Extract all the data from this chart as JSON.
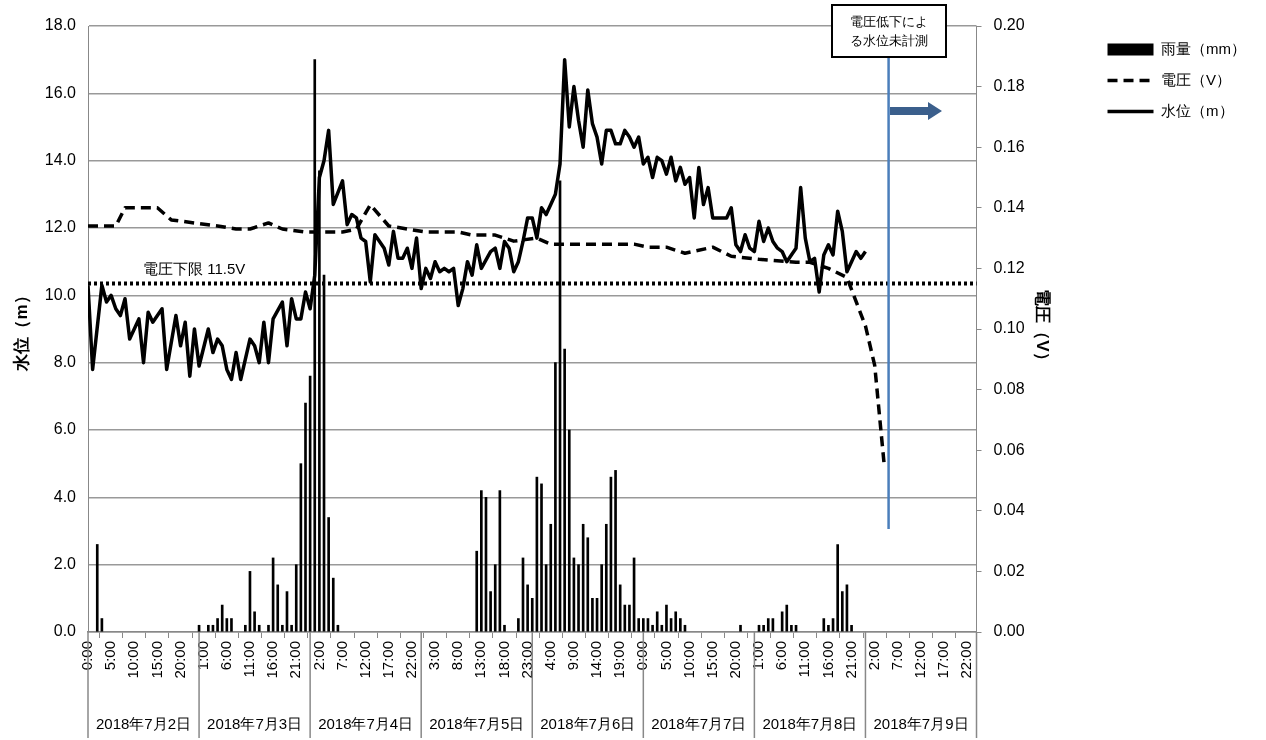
{
  "chart_data": {
    "type": "line",
    "ylabel": "水位（m）",
    "y2label": "電圧（V）",
    "xlim": [
      "2018-07-02T00:00",
      "2018-07-10T00:00"
    ],
    "xticks": [
      {
        "value": "2018-07-02T00:00",
        "label": "0:00"
      },
      {
        "value": "2018-07-02T05:00",
        "label": "5:00"
      },
      {
        "value": "2018-07-02T10:00",
        "label": "10:00"
      },
      {
        "value": "2018-07-02T15:00",
        "label": "15:00"
      },
      {
        "value": "2018-07-02T20:00",
        "label": "20:00"
      },
      {
        "value": "2018-07-03T01:00",
        "label": "1:00"
      },
      {
        "value": "2018-07-03T06:00",
        "label": "6:00"
      },
      {
        "value": "2018-07-03T11:00",
        "label": "11:00"
      },
      {
        "value": "2018-07-03T16:00",
        "label": "16:00"
      },
      {
        "value": "2018-07-03T21:00",
        "label": "21:00"
      },
      {
        "value": "2018-07-04T02:00",
        "label": "2:00"
      },
      {
        "value": "2018-07-04T07:00",
        "label": "7:00"
      },
      {
        "value": "2018-07-04T12:00",
        "label": "12:00"
      },
      {
        "value": "2018-07-04T17:00",
        "label": "17:00"
      },
      {
        "value": "2018-07-04T22:00",
        "label": "22:00"
      },
      {
        "value": "2018-07-05T03:00",
        "label": "3:00"
      },
      {
        "value": "2018-07-05T08:00",
        "label": "8:00"
      },
      {
        "value": "2018-07-05T13:00",
        "label": "13:00"
      },
      {
        "value": "2018-07-05T18:00",
        "label": "18:00"
      },
      {
        "value": "2018-07-05T23:00",
        "label": "23:00"
      },
      {
        "value": "2018-07-06T04:00",
        "label": "4:00"
      },
      {
        "value": "2018-07-06T09:00",
        "label": "9:00"
      },
      {
        "value": "2018-07-06T14:00",
        "label": "14:00"
      },
      {
        "value": "2018-07-06T19:00",
        "label": "19:00"
      },
      {
        "value": "2018-07-07T00:00",
        "label": "0:00"
      },
      {
        "value": "2018-07-07T05:00",
        "label": "5:00"
      },
      {
        "value": "2018-07-07T10:00",
        "label": "10:00"
      },
      {
        "value": "2018-07-07T15:00",
        "label": "15:00"
      },
      {
        "value": "2018-07-07T20:00",
        "label": "20:00"
      },
      {
        "value": "2018-07-08T01:00",
        "label": "1:00"
      },
      {
        "value": "2018-07-08T06:00",
        "label": "6:00"
      },
      {
        "value": "2018-07-08T11:00",
        "label": "11:00"
      },
      {
        "value": "2018-07-08T16:00",
        "label": "16:00"
      },
      {
        "value": "2018-07-08T21:00",
        "label": "21:00"
      },
      {
        "value": "2018-07-09T02:00",
        "label": "2:00"
      },
      {
        "value": "2018-07-09T07:00",
        "label": "7:00"
      },
      {
        "value": "2018-07-09T12:00",
        "label": "12:00"
      },
      {
        "value": "2018-07-09T17:00",
        "label": "17:00"
      },
      {
        "value": "2018-07-09T22:00",
        "label": "22:00"
      }
    ],
    "x2lim": [
      "2018-07-02T00:00",
      "2018-07-10T00:00"
    ],
    "x2ticks": [
      {
        "value": "2018-07-02T12:00",
        "label": "2018年7月2日"
      },
      {
        "value": "2018-07-03T12:00",
        "label": "2018年7月3日"
      },
      {
        "value": "2018-07-04T12:00",
        "label": "2018年7月4日"
      },
      {
        "value": "2018-07-05T12:00",
        "label": "2018年7月5日"
      },
      {
        "value": "2018-07-06T12:00",
        "label": "2018年7月6日"
      },
      {
        "value": "2018-07-07T12:00",
        "label": "2018年7月7日"
      },
      {
        "value": "2018-07-08T12:00",
        "label": "2018年7月8日"
      },
      {
        "value": "2018-07-09T12:00",
        "label": "2018年7月9日"
      }
    ],
    "ylim": [
      0,
      18
    ],
    "yticks": [
      {
        "value": 0,
        "label": "0.0"
      },
      {
        "value": 2,
        "label": "2.0"
      },
      {
        "value": 4,
        "label": "4.0"
      },
      {
        "value": 6,
        "label": "6.0"
      },
      {
        "value": 8,
        "label": "8.0"
      },
      {
        "value": 10,
        "label": "10.0"
      },
      {
        "value": 12,
        "label": "12.0"
      },
      {
        "value": 14,
        "label": "14.0"
      },
      {
        "value": 16,
        "label": "16.0"
      },
      {
        "value": 18,
        "label": "18.0"
      }
    ],
    "y2lim": [
      0,
      0.2
    ],
    "y2ticks": [
      {
        "value": 0,
        "label": "0.00"
      },
      {
        "value": 0.02,
        "label": "0.02"
      },
      {
        "value": 0.04,
        "label": "0.04"
      },
      {
        "value": 0.06,
        "label": "0.06"
      },
      {
        "value": 0.08,
        "label": "0.08"
      },
      {
        "value": 0.1,
        "label": "0.10"
      },
      {
        "value": 0.12,
        "label": "0.12"
      },
      {
        "value": 0.14,
        "label": "0.14"
      },
      {
        "value": 0.16,
        "label": "0.16"
      },
      {
        "value": 0.18,
        "label": "0.18"
      },
      {
        "value": 0.2,
        "label": "0.20"
      }
    ],
    "grid": "y",
    "legend": "right",
    "marker": "none",
    "series": [
      {
        "type": "bar",
        "name": "雨量（mm）",
        "color": "#000000",
        "x": [
          "2018-07-02T02:00",
          "2018-07-02T03:00",
          "2018-07-03T00:00",
          "2018-07-03T02:00",
          "2018-07-03T03:00",
          "2018-07-03T04:00",
          "2018-07-03T05:00",
          "2018-07-03T06:00",
          "2018-07-03T07:00",
          "2018-07-03T10:00",
          "2018-07-03T11:00",
          "2018-07-03T12:00",
          "2018-07-03T13:00",
          "2018-07-03T15:00",
          "2018-07-03T16:00",
          "2018-07-03T17:00",
          "2018-07-03T18:00",
          "2018-07-03T19:00",
          "2018-07-03T20:00",
          "2018-07-03T21:00",
          "2018-07-03T22:00",
          "2018-07-03T23:00",
          "2018-07-04T00:00",
          "2018-07-04T01:00",
          "2018-07-04T02:00",
          "2018-07-04T03:00",
          "2018-07-04T04:00",
          "2018-07-04T05:00",
          "2018-07-04T06:00",
          "2018-07-05T12:00",
          "2018-07-05T13:00",
          "2018-07-05T14:00",
          "2018-07-05T15:00",
          "2018-07-05T16:00",
          "2018-07-05T17:00",
          "2018-07-05T18:00",
          "2018-07-05T21:00",
          "2018-07-05T22:00",
          "2018-07-05T23:00",
          "2018-07-06T00:00",
          "2018-07-06T01:00",
          "2018-07-06T02:00",
          "2018-07-06T03:00",
          "2018-07-06T04:00",
          "2018-07-06T05:00",
          "2018-07-06T06:00",
          "2018-07-06T07:00",
          "2018-07-06T08:00",
          "2018-07-06T09:00",
          "2018-07-06T10:00",
          "2018-07-06T11:00",
          "2018-07-06T12:00",
          "2018-07-06T13:00",
          "2018-07-06T14:00",
          "2018-07-06T15:00",
          "2018-07-06T16:00",
          "2018-07-06T17:00",
          "2018-07-06T18:00",
          "2018-07-06T19:00",
          "2018-07-06T20:00",
          "2018-07-06T21:00",
          "2018-07-06T22:00",
          "2018-07-06T23:00",
          "2018-07-07T00:00",
          "2018-07-07T01:00",
          "2018-07-07T02:00",
          "2018-07-07T03:00",
          "2018-07-07T04:00",
          "2018-07-07T05:00",
          "2018-07-07T06:00",
          "2018-07-07T07:00",
          "2018-07-07T08:00",
          "2018-07-07T09:00",
          "2018-07-07T21:00",
          "2018-07-08T01:00",
          "2018-07-08T02:00",
          "2018-07-08T03:00",
          "2018-07-08T04:00",
          "2018-07-08T06:00",
          "2018-07-08T07:00",
          "2018-07-08T08:00",
          "2018-07-08T09:00",
          "2018-07-08T15:00",
          "2018-07-08T16:00",
          "2018-07-08T17:00",
          "2018-07-08T18:00",
          "2018-07-08T19:00",
          "2018-07-08T20:00",
          "2018-07-08T21:00"
        ],
        "values": [
          2.6,
          0.4,
          0.2,
          0.2,
          0.2,
          0.4,
          0.8,
          0.4,
          0.4,
          0.2,
          1.8,
          0.6,
          0.2,
          0.2,
          2.2,
          1.4,
          0.2,
          1.2,
          0.2,
          2.0,
          5.0,
          6.8,
          7.6,
          17.0,
          13.7,
          10.6,
          3.4,
          1.6,
          0.2,
          2.4,
          4.2,
          4.0,
          1.2,
          2.0,
          4.2,
          0.2,
          0.4,
          2.2,
          1.4,
          1.0,
          4.6,
          4.4,
          2.0,
          3.2,
          8.0,
          13.4,
          8.4,
          6.0,
          2.2,
          2.0,
          3.2,
          2.8,
          1.0,
          1.0,
          2.0,
          3.2,
          4.6,
          4.8,
          1.4,
          0.8,
          0.8,
          2.2,
          0.4,
          0.4,
          0.4,
          0.2,
          0.6,
          0.2,
          0.8,
          0.4,
          0.6,
          0.4,
          0.2,
          0.2,
          0.2,
          0.2,
          0.4,
          0.4,
          0.6,
          0.8,
          0.2,
          0.2,
          0.4,
          0.2,
          0.4,
          2.6,
          1.2,
          1.4,
          0.2
        ]
      },
      {
        "name": "電圧（V）",
        "color": "#000000",
        "axis": "y2",
        "line_style": "dashed",
        "x": [
          "2018-07-02T00:00",
          "2018-07-02T06:00",
          "2018-07-02T08:00",
          "2018-07-02T11:00",
          "2018-07-02T15:00",
          "2018-07-02T18:00",
          "2018-07-02T23:00",
          "2018-07-03T04:00",
          "2018-07-03T08:00",
          "2018-07-03T11:00",
          "2018-07-03T15:00",
          "2018-07-03T18:00",
          "2018-07-03T23:00",
          "2018-07-04T02:00",
          "2018-07-04T07:00",
          "2018-07-04T10:00",
          "2018-07-04T13:00",
          "2018-07-04T17:00",
          "2018-07-04T21:00",
          "2018-07-05T01:00",
          "2018-07-05T08:00",
          "2018-07-05T11:00",
          "2018-07-05T16:00",
          "2018-07-05T20:00",
          "2018-07-06T01:00",
          "2018-07-06T04:00",
          "2018-07-06T13:00",
          "2018-07-06T22:00",
          "2018-07-07T01:00",
          "2018-07-07T05:00",
          "2018-07-07T09:00",
          "2018-07-07T15:00",
          "2018-07-07T19:00",
          "2018-07-08T01:00",
          "2018-07-08T09:00",
          "2018-07-08T12:00",
          "2018-07-08T16:00",
          "2018-07-08T20:00",
          "2018-07-08T21:00",
          "2018-07-09T00:00",
          "2018-07-09T02:00",
          "2018-07-09T03:00",
          "2018-07-09T04:00"
        ],
        "values": [
          0.134,
          0.134,
          0.14,
          0.14,
          0.14,
          0.136,
          0.135,
          0.134,
          0.133,
          0.133,
          0.135,
          0.133,
          0.132,
          0.132,
          0.132,
          0.133,
          0.141,
          0.134,
          0.133,
          0.132,
          0.132,
          0.131,
          0.131,
          0.129,
          0.13,
          0.128,
          0.128,
          0.128,
          0.127,
          0.127,
          0.125,
          0.127,
          0.124,
          0.123,
          0.122,
          0.122,
          0.12,
          0.117,
          0.113,
          0.101,
          0.088,
          0.072,
          0.056
        ]
      },
      {
        "name": "水位（m）",
        "color": "#000000",
        "line_style": "solid",
        "x": [
          "2018-07-02T00:00",
          "2018-07-02T01:00",
          "2018-07-02T03:00",
          "2018-07-02T04:00",
          "2018-07-02T05:00",
          "2018-07-02T06:00",
          "2018-07-02T07:00",
          "2018-07-02T08:00",
          "2018-07-02T09:00",
          "2018-07-02T11:00",
          "2018-07-02T12:00",
          "2018-07-02T13:00",
          "2018-07-02T14:00",
          "2018-07-02T16:00",
          "2018-07-02T17:00",
          "2018-07-02T19:00",
          "2018-07-02T20:00",
          "2018-07-02T21:00",
          "2018-07-02T22:00",
          "2018-07-02T23:00",
          "2018-07-03T00:00",
          "2018-07-03T02:00",
          "2018-07-03T03:00",
          "2018-07-03T04:00",
          "2018-07-03T05:00",
          "2018-07-03T06:00",
          "2018-07-03T07:00",
          "2018-07-03T08:00",
          "2018-07-03T09:00",
          "2018-07-03T11:00",
          "2018-07-03T12:00",
          "2018-07-03T13:00",
          "2018-07-03T14:00",
          "2018-07-03T15:00",
          "2018-07-03T16:00",
          "2018-07-03T18:00",
          "2018-07-03T19:00",
          "2018-07-03T20:00",
          "2018-07-03T21:00",
          "2018-07-03T22:00",
          "2018-07-03T23:00",
          "2018-07-04T00:00",
          "2018-07-04T01:00",
          "2018-07-04T02:00",
          "2018-07-04T03:00",
          "2018-07-04T04:00",
          "2018-07-04T05:00",
          "2018-07-04T07:00",
          "2018-07-04T08:00",
          "2018-07-04T09:00",
          "2018-07-04T10:00",
          "2018-07-04T11:00",
          "2018-07-04T12:00",
          "2018-07-04T13:00",
          "2018-07-04T14:00",
          "2018-07-04T16:00",
          "2018-07-04T17:00",
          "2018-07-04T18:00",
          "2018-07-04T19:00",
          "2018-07-04T20:00",
          "2018-07-04T21:00",
          "2018-07-04T22:00",
          "2018-07-04T23:00",
          "2018-07-05T00:00",
          "2018-07-05T01:00",
          "2018-07-05T02:00",
          "2018-07-05T03:00",
          "2018-07-05T04:00",
          "2018-07-05T05:00",
          "2018-07-05T06:00",
          "2018-07-05T07:00",
          "2018-07-05T08:00",
          "2018-07-05T09:00",
          "2018-07-05T10:00",
          "2018-07-05T11:00",
          "2018-07-05T12:00",
          "2018-07-05T13:00",
          "2018-07-05T15:00",
          "2018-07-05T16:00",
          "2018-07-05T17:00",
          "2018-07-05T18:00",
          "2018-07-05T19:00",
          "2018-07-05T20:00",
          "2018-07-05T21:00",
          "2018-07-05T22:00",
          "2018-07-05T23:00",
          "2018-07-06T00:00",
          "2018-07-06T01:00",
          "2018-07-06T02:00",
          "2018-07-06T03:00",
          "2018-07-06T04:00",
          "2018-07-06T05:00",
          "2018-07-06T06:00",
          "2018-07-06T07:00",
          "2018-07-06T08:00",
          "2018-07-06T09:00",
          "2018-07-06T10:00",
          "2018-07-06T11:00",
          "2018-07-06T12:00",
          "2018-07-06T13:00",
          "2018-07-06T14:00",
          "2018-07-06T15:00",
          "2018-07-06T16:00",
          "2018-07-06T17:00",
          "2018-07-06T18:00",
          "2018-07-06T19:00",
          "2018-07-06T20:00",
          "2018-07-06T21:00",
          "2018-07-06T22:00",
          "2018-07-06T23:00",
          "2018-07-07T00:00",
          "2018-07-07T01:00",
          "2018-07-07T02:00",
          "2018-07-07T03:00",
          "2018-07-07T04:00",
          "2018-07-07T05:00",
          "2018-07-07T06:00",
          "2018-07-07T07:00",
          "2018-07-07T08:00",
          "2018-07-07T09:00",
          "2018-07-07T10:00",
          "2018-07-07T11:00",
          "2018-07-07T12:00",
          "2018-07-07T13:00",
          "2018-07-07T14:00",
          "2018-07-07T15:00",
          "2018-07-07T18:00",
          "2018-07-07T19:00",
          "2018-07-07T20:00",
          "2018-07-07T21:00",
          "2018-07-07T22:00",
          "2018-07-07T23:00",
          "2018-07-08T00:00",
          "2018-07-08T01:00",
          "2018-07-08T02:00",
          "2018-07-08T03:00",
          "2018-07-08T04:00",
          "2018-07-08T05:00",
          "2018-07-08T06:00",
          "2018-07-08T07:00",
          "2018-07-08T09:00",
          "2018-07-08T10:00",
          "2018-07-08T11:00",
          "2018-07-08T12:00",
          "2018-07-08T13:00",
          "2018-07-08T14:00",
          "2018-07-08T15:00",
          "2018-07-08T16:00",
          "2018-07-08T17:00",
          "2018-07-08T18:00",
          "2018-07-08T19:00",
          "2018-07-08T20:00",
          "2018-07-08T21:00",
          "2018-07-08T22:00",
          "2018-07-08T23:00",
          "2018-07-09T00:00"
        ],
        "values": [
          10.3,
          7.8,
          10.3,
          9.8,
          10.0,
          9.6,
          9.4,
          9.9,
          8.7,
          9.3,
          8.0,
          9.5,
          9.2,
          9.6,
          7.8,
          9.4,
          8.5,
          9.2,
          7.6,
          9.0,
          7.9,
          9.0,
          8.3,
          8.7,
          8.5,
          7.8,
          7.5,
          8.3,
          7.5,
          8.7,
          8.5,
          8.0,
          9.2,
          8.0,
          9.3,
          9.8,
          8.5,
          9.9,
          9.3,
          9.3,
          10.1,
          9.6,
          10.6,
          13.5,
          14.0,
          14.9,
          12.7,
          13.4,
          12.1,
          12.4,
          12.3,
          11.7,
          11.6,
          10.4,
          11.8,
          11.4,
          10.9,
          11.9,
          11.1,
          11.1,
          11.4,
          10.8,
          11.7,
          10.2,
          10.8,
          10.5,
          11.0,
          10.7,
          10.8,
          10.7,
          10.8,
          9.7,
          10.2,
          11.0,
          10.6,
          11.5,
          10.8,
          11.3,
          11.4,
          10.8,
          11.6,
          11.4,
          10.7,
          11.0,
          11.6,
          12.3,
          12.3,
          11.7,
          12.6,
          12.4,
          12.7,
          13.0,
          13.9,
          17.0,
          15.0,
          16.2,
          15.2,
          14.4,
          16.1,
          15.1,
          14.7,
          13.9,
          14.9,
          14.9,
          14.5,
          14.5,
          14.9,
          14.7,
          14.4,
          14.7,
          13.9,
          14.1,
          13.5,
          14.1,
          14.0,
          13.6,
          14.1,
          13.4,
          13.8,
          13.3,
          13.5,
          12.3,
          13.8,
          12.7,
          13.2,
          12.3,
          12.3,
          12.6,
          11.5,
          11.3,
          11.8,
          11.4,
          11.3,
          12.2,
          11.6,
          12.0,
          11.6,
          11.4,
          11.3,
          11.0,
          11.4,
          13.2,
          11.7,
          11.0,
          11.1,
          10.1,
          11.2,
          11.5,
          11.2,
          12.5,
          11.9,
          10.7,
          11.0,
          11.3,
          11.1,
          11.3
        ]
      }
    ],
    "ref_lines": [
      {
        "axis": "y2",
        "value": 0.115,
        "label": "電圧下限 11.5V",
        "line_style": "dotted",
        "color": "#000000"
      },
      {
        "axis": "x",
        "value": "2018-07-09T05:00",
        "label": "電圧低下による水位未計測",
        "line_style": "solid",
        "color": "#4a7ebb"
      }
    ]
  }
}
